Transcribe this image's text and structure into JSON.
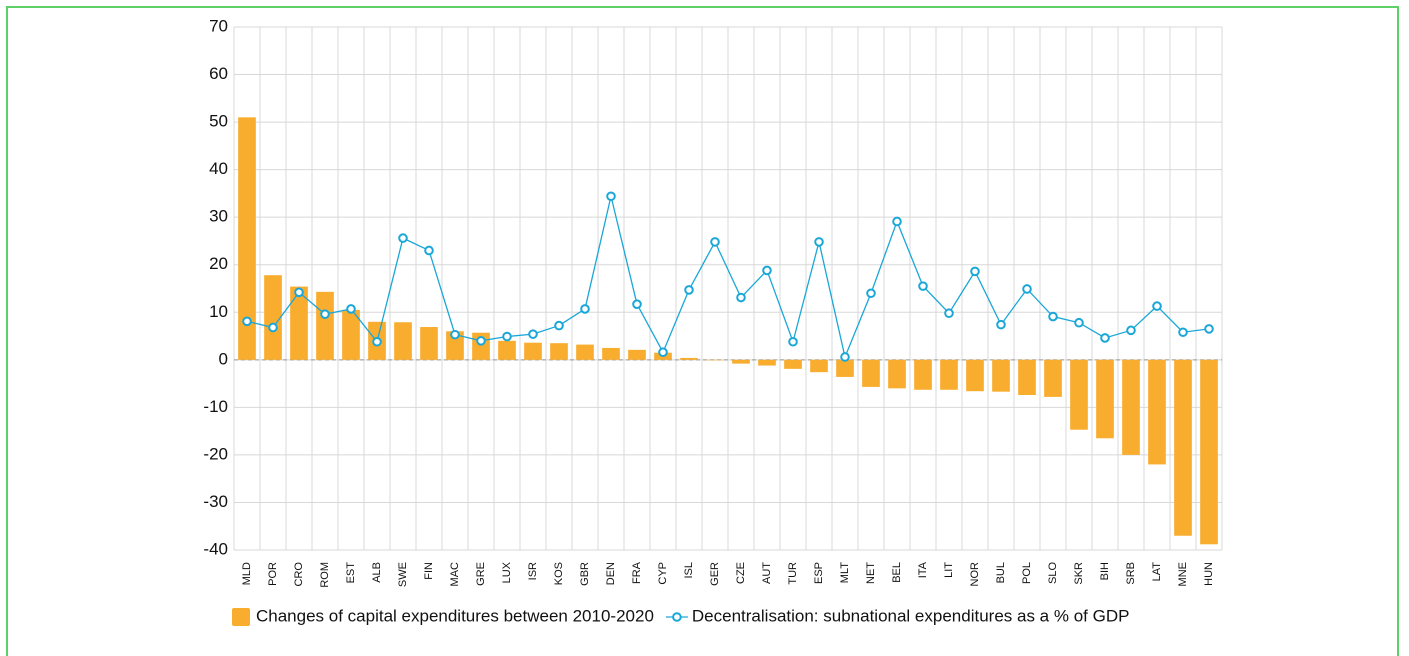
{
  "chart_data": {
    "type": "bar-line",
    "categories": [
      "MLD",
      "POR",
      "CRO",
      "ROM",
      "EST",
      "ALB",
      "SWE",
      "FIN",
      "MAC",
      "GRE",
      "LUX",
      "ISR",
      "KOS",
      "GBR",
      "DEN",
      "FRA",
      "CYP",
      "ISL",
      "GER",
      "CZE",
      "AUT",
      "TUR",
      "ESP",
      "MLT",
      "NET",
      "BEL",
      "ITA",
      "LIT",
      "NOR",
      "BUL",
      "POL",
      "SLO",
      "SKR",
      "BIH",
      "SRB",
      "LAT",
      "MNE",
      "HUN"
    ],
    "series": [
      {
        "name": "Changes of capital expenditures between 2010-2020",
        "type": "bar",
        "color": "#f9ad2e",
        "values": [
          51,
          17.8,
          15.4,
          14.3,
          10.5,
          8,
          7.9,
          6.9,
          6,
          5.7,
          4,
          3.6,
          3.5,
          3.2,
          2.5,
          2.1,
          1.5,
          0.4,
          -0.1,
          -0.8,
          -1.2,
          -1.9,
          -2.6,
          -3.6,
          -5.7,
          -6,
          -6.3,
          -6.3,
          -6.6,
          -6.7,
          -7.4,
          -7.8,
          -14.7,
          -16.5,
          -20,
          -22,
          -37,
          -38.8
        ]
      },
      {
        "name": "Decentralisation: subnational expenditures as a % of GDP",
        "type": "line",
        "color": "#1aa7d8",
        "values": [
          8.1,
          6.8,
          14.2,
          9.6,
          10.7,
          3.8,
          25.6,
          23,
          5.3,
          4,
          4.9,
          5.4,
          7.2,
          10.7,
          34.4,
          11.7,
          1.6,
          14.7,
          24.8,
          13.1,
          18.8,
          3.8,
          24.8,
          0.6,
          14,
          29.1,
          15.5,
          9.8,
          18.6,
          7.4,
          14.9,
          9.1,
          7.8,
          4.6,
          6.2,
          11.3,
          5.8,
          6.5
        ]
      }
    ],
    "ylim": [
      -40,
      70
    ],
    "yticks": [
      -40,
      -30,
      -20,
      -10,
      0,
      10,
      20,
      30,
      40,
      50,
      60,
      70
    ],
    "grid": true,
    "legend": "bottom"
  }
}
